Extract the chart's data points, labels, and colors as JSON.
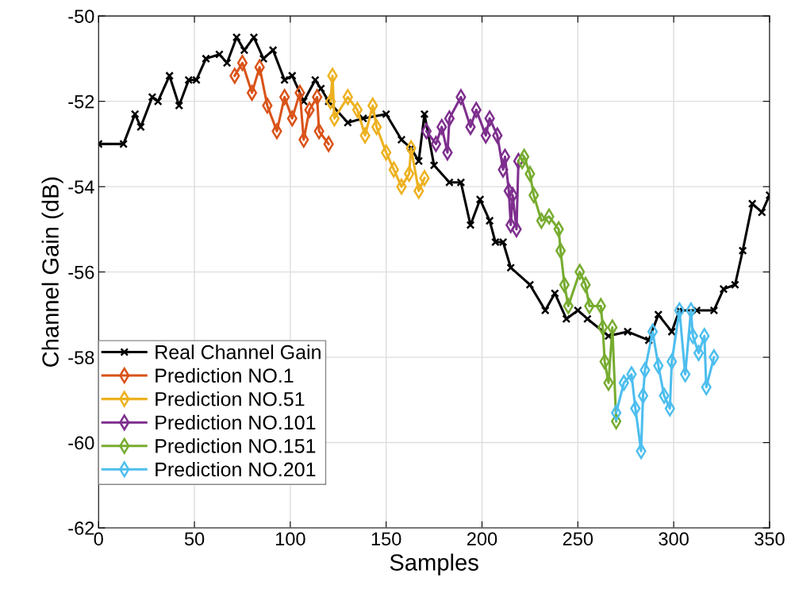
{
  "chart_data": {
    "type": "line",
    "xlabel": "Samples",
    "ylabel": "Channel Gain (dB)",
    "xlim": [
      0,
      350
    ],
    "xticks": [
      0,
      50,
      100,
      150,
      200,
      250,
      300,
      350
    ],
    "ylim": [
      -62,
      -50
    ],
    "yticks": [
      -62,
      -60,
      -58,
      -56,
      -54,
      -52,
      -50
    ],
    "grid": true,
    "legend": "bottom left",
    "line_style": "solid",
    "series": [
      {
        "name": "Real Channel Gain",
        "color": "#000000",
        "marker": "cross",
        "x": [
          0,
          13,
          19,
          22,
          28,
          31,
          37,
          42,
          47,
          51,
          56,
          63,
          67,
          72,
          76,
          81,
          86,
          91,
          97,
          101,
          107,
          113,
          116,
          120,
          130,
          138,
          150,
          158,
          163,
          167,
          170,
          175,
          183,
          189,
          194,
          199,
          204,
          207,
          211,
          215,
          225,
          233,
          238,
          244,
          250,
          255,
          266,
          276,
          287,
          292,
          299,
          303,
          312,
          321,
          326,
          332,
          336,
          341,
          346,
          350
        ],
        "values": [
          -53.0,
          -53.0,
          -52.3,
          -52.6,
          -51.9,
          -52.0,
          -51.4,
          -52.1,
          -51.5,
          -51.5,
          -51.0,
          -50.9,
          -51.1,
          -50.5,
          -50.8,
          -50.5,
          -51.0,
          -50.8,
          -51.5,
          -51.4,
          -52.0,
          -51.5,
          -51.7,
          -52.0,
          -52.5,
          -52.4,
          -52.3,
          -52.9,
          -53.1,
          -53.4,
          -52.3,
          -53.5,
          -53.9,
          -53.9,
          -54.9,
          -54.3,
          -54.8,
          -55.3,
          -55.3,
          -55.9,
          -56.3,
          -56.9,
          -56.5,
          -57.1,
          -56.9,
          -57.1,
          -57.5,
          -57.4,
          -57.6,
          -57.0,
          -57.4,
          -56.9,
          -56.9,
          -56.9,
          -56.4,
          -56.3,
          -55.5,
          -54.4,
          -54.6,
          -54.2
        ]
      },
      {
        "name": "Prediction NO.1",
        "color": "#d95319",
        "marker": "diamond",
        "x": [
          71,
          75,
          80,
          84,
          88,
          93,
          97,
          101,
          105,
          107,
          110,
          114,
          115,
          120
        ],
        "values": [
          -51.4,
          -51.1,
          -51.8,
          -51.2,
          -52.1,
          -52.7,
          -51.9,
          -52.4,
          -51.8,
          -52.9,
          -52.2,
          -51.9,
          -52.7,
          -53.0
        ]
      },
      {
        "name": "Prediction NO.51",
        "color": "#edb120",
        "marker": "diamond",
        "x": [
          121,
          122,
          123,
          130,
          135,
          139,
          143,
          145,
          150,
          154,
          158,
          162,
          163,
          167,
          170
        ],
        "values": [
          -52.0,
          -51.4,
          -52.4,
          -51.9,
          -52.2,
          -52.8,
          -52.1,
          -52.6,
          -53.2,
          -53.6,
          -54.0,
          -53.7,
          -53.1,
          -54.1,
          -53.8
        ]
      },
      {
        "name": "Prediction NO.101",
        "color": "#7e2f8e",
        "marker": "diamond",
        "x": [
          171,
          176,
          179,
          182,
          183,
          189,
          194,
          197,
          202,
          204,
          208,
          211,
          212,
          214,
          215,
          216,
          218,
          219
        ],
        "values": [
          -52.7,
          -53.0,
          -52.6,
          -53.2,
          -52.4,
          -51.9,
          -52.6,
          -52.2,
          -52.8,
          -52.4,
          -52.8,
          -53.6,
          -53.3,
          -54.1,
          -54.9,
          -54.2,
          -55.0,
          -53.4
        ]
      },
      {
        "name": "Prediction NO.151",
        "color": "#77ac30",
        "marker": "diamond",
        "x": [
          221,
          222,
          225,
          227,
          231,
          235,
          240,
          241,
          243,
          245,
          251,
          254,
          256,
          262,
          263,
          264,
          266,
          268,
          270
        ],
        "values": [
          -53.4,
          -53.3,
          -53.7,
          -54.2,
          -54.8,
          -54.7,
          -55.0,
          -55.5,
          -56.3,
          -56.8,
          -56.0,
          -56.3,
          -56.8,
          -56.8,
          -57.3,
          -58.1,
          -58.6,
          -57.3,
          -59.5
        ]
      },
      {
        "name": "Prediction NO.201",
        "color": "#4dbeee",
        "marker": "diamond",
        "x": [
          270,
          274,
          278,
          280,
          283,
          284,
          285,
          289,
          292,
          295,
          298,
          299,
          303,
          306,
          309,
          310,
          313,
          316,
          317,
          321
        ],
        "values": [
          -59.3,
          -58.6,
          -58.4,
          -59.2,
          -60.2,
          -58.9,
          -58.3,
          -57.4,
          -58.2,
          -58.9,
          -59.2,
          -58.1,
          -56.9,
          -58.4,
          -56.9,
          -57.5,
          -57.9,
          -57.5,
          -58.7,
          -58.0
        ]
      }
    ]
  }
}
